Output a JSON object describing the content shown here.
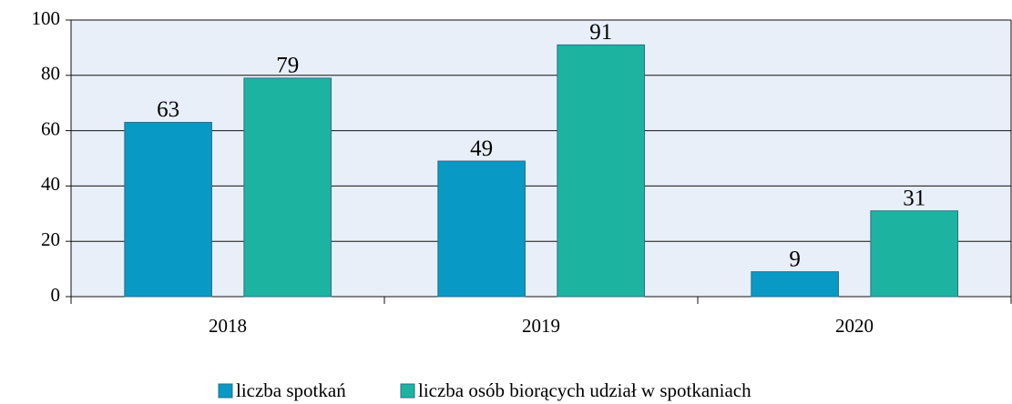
{
  "chart_data": {
    "type": "bar",
    "categories": [
      "2018",
      "2019",
      "2020"
    ],
    "series": [
      {
        "name": "liczba spotkań",
        "color": "#0899c4",
        "values": [
          63,
          49,
          9
        ]
      },
      {
        "name": "liczba osób biorących udział w spotkaniach",
        "color": "#1cb4a0",
        "values": [
          79,
          91,
          31
        ]
      }
    ],
    "ylim": [
      0,
      100
    ],
    "yticks": [
      0,
      20,
      40,
      60,
      80,
      100
    ],
    "grid": true,
    "legend": "bottom"
  }
}
